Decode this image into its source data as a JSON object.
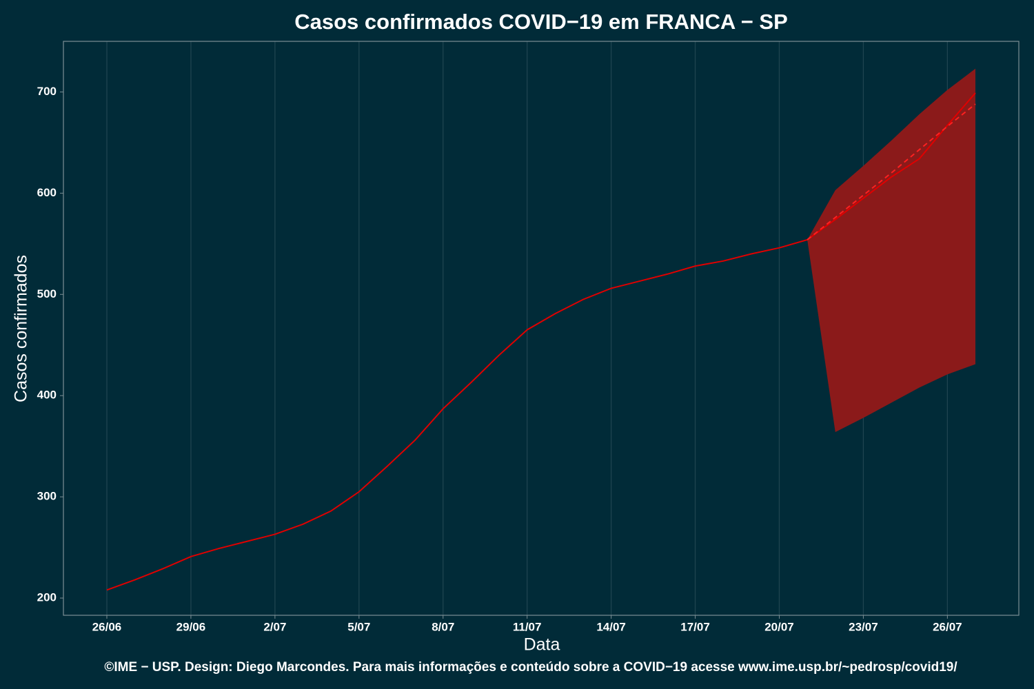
{
  "chart_data": {
    "type": "line",
    "title": "Casos confirmados COVID−19 em FRANCA − SP",
    "x_label": "Data",
    "y_label": "Casos confirmados",
    "caption": "©IME − USP. Design: Diego Marcondes. Para mais informações e conteúdo sobre a COVID−19 acesse www.ime.usp.br/~pedrosp/covid19/",
    "categories": [
      "26/06",
      null,
      null,
      "29/06",
      null,
      null,
      "2/07",
      null,
      null,
      "5/07",
      null,
      null,
      "8/07",
      null,
      null,
      "11/07",
      null,
      null,
      "14/07",
      null,
      null,
      "17/07",
      null,
      null,
      "20/07",
      null,
      null,
      "23/07",
      null,
      null,
      "26/07",
      null
    ],
    "series": [
      {
        "color": "#e00000",
        "style": "solid",
        "values": [
          208,
          218,
          229,
          241,
          249,
          256,
          263,
          273,
          286,
          305,
          330,
          356,
          387,
          413,
          440,
          465,
          481,
          495,
          506,
          513,
          520,
          528,
          533,
          540,
          546,
          554,
          574,
          595,
          616,
          634,
          667,
          699
        ]
      },
      {
        "color": "#ff2020",
        "style": "dashed",
        "values": [
          null,
          null,
          null,
          null,
          null,
          null,
          null,
          null,
          null,
          null,
          null,
          null,
          null,
          null,
          null,
          null,
          null,
          null,
          null,
          null,
          null,
          null,
          null,
          null,
          null,
          554,
          576,
          598,
          620,
          643,
          666,
          688
        ]
      }
    ],
    "band": {
      "color": "#8b1a1a",
      "upper": [
        null,
        null,
        null,
        null,
        null,
        null,
        null,
        null,
        null,
        null,
        null,
        null,
        null,
        null,
        null,
        null,
        null,
        null,
        null,
        null,
        null,
        null,
        null,
        null,
        null,
        554,
        603,
        627,
        652,
        678,
        702,
        723
      ],
      "lower": [
        null,
        null,
        null,
        null,
        null,
        null,
        null,
        null,
        null,
        null,
        null,
        null,
        null,
        null,
        null,
        null,
        null,
        null,
        null,
        null,
        null,
        null,
        null,
        null,
        null,
        554,
        364,
        378,
        393,
        408,
        421,
        431
      ]
    },
    "ylim": [
      183,
      750
    ],
    "yticks": [
      200,
      300,
      400,
      500,
      600,
      700
    ],
    "grid": "x"
  }
}
